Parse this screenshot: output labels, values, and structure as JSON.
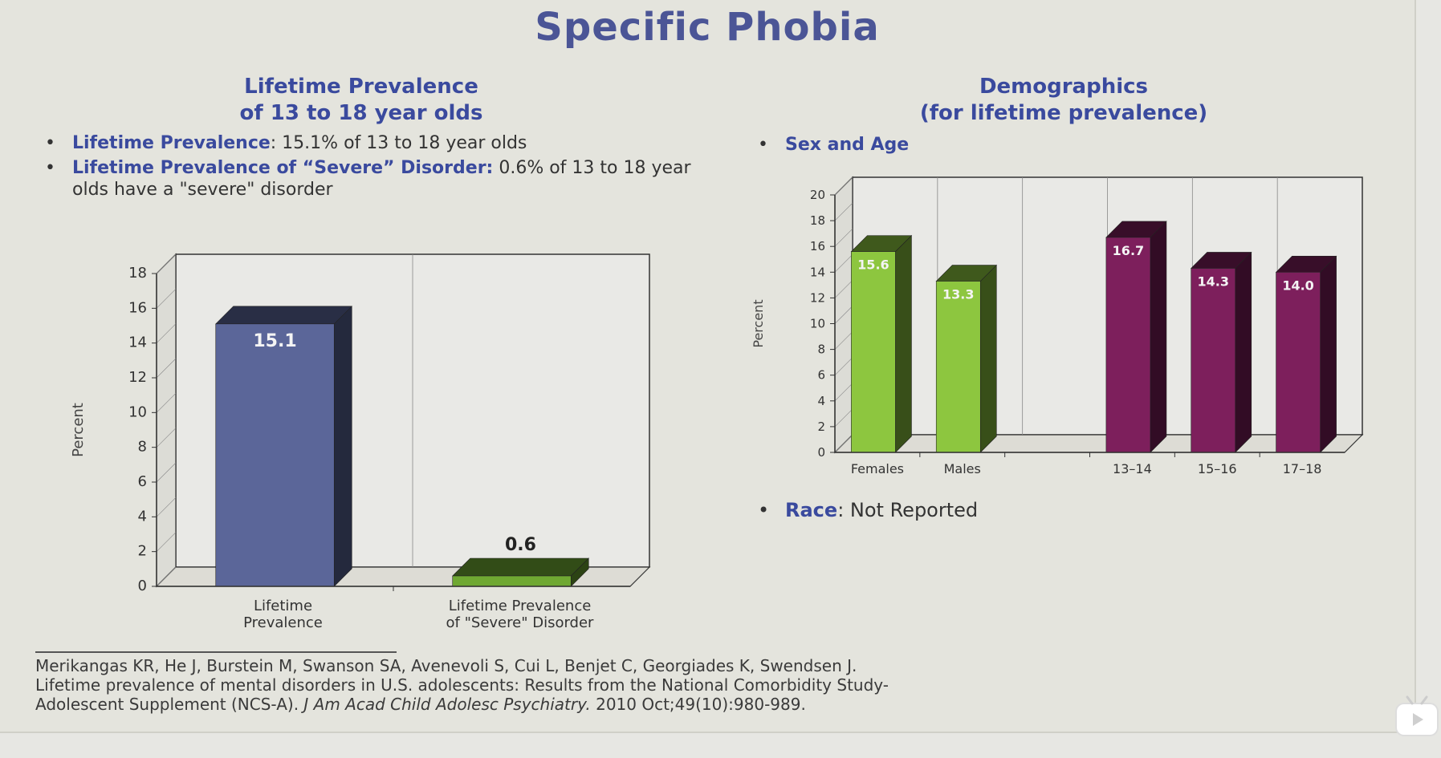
{
  "title": "Specific Phobia",
  "left": {
    "heading_line1": "Lifetime Prevalence",
    "heading_line2": "of 13 to 18 year olds",
    "bullets": [
      {
        "label": "Lifetime Prevalence",
        "text": ": 15.1% of 13 to 18 year olds"
      },
      {
        "label": "Lifetime Prevalence of “Severe” Disorder:",
        "text": " 0.6% of 13 to 18 year olds have a \"severe\" disorder"
      }
    ]
  },
  "right": {
    "heading_line1": "Demographics",
    "heading_line2": "(for lifetime prevalence)",
    "bullet_sex_age": "Sex and Age",
    "race_label": "Race",
    "race_text": ": Not Reported"
  },
  "citation": {
    "line1": "Merikangas KR, He J, Burstein M, Swanson SA, Avenevoli S, Cui L, Benjet C, Georgiades K, Swendsen J.",
    "line2": "Lifetime prevalence of mental disorders in U.S. adolescents: Results from the National Comorbidity Study-",
    "line3_prefix": "Adolescent Supplement (NCS-A). ",
    "journal": "J Am Acad Child Adolesc Psychiatry.",
    "line3_suffix": " 2010 Oct;49(10):980-989."
  },
  "chart_data": [
    {
      "type": "bar",
      "title": "",
      "xlabel": "",
      "ylabel": "Percent",
      "ylim": [
        0,
        18
      ],
      "yticks": [
        0,
        2,
        4,
        6,
        8,
        10,
        12,
        14,
        16,
        18
      ],
      "categories": [
        "Lifetime Prevalence",
        "Lifetime Prevalence of \"Severe\" Disorder"
      ],
      "category_lines": [
        [
          "Lifetime",
          "Prevalence"
        ],
        [
          "Lifetime Prevalence",
          "of \"Severe\" Disorder"
        ]
      ],
      "values": [
        15.1,
        0.6
      ],
      "labels": [
        "15.1",
        "0.6"
      ],
      "colors": [
        "#5b6699",
        "#6fa832"
      ],
      "grid": false,
      "style": "3d"
    },
    {
      "type": "bar",
      "title": "",
      "xlabel": "",
      "ylabel": "Percent",
      "ylim": [
        0,
        20
      ],
      "yticks": [
        0,
        2,
        4,
        6,
        8,
        10,
        12,
        14,
        16,
        18,
        20
      ],
      "categories": [
        "Females",
        "Males",
        "",
        "13–14",
        "15–16",
        "17–18"
      ],
      "values": [
        15.6,
        13.3,
        null,
        16.7,
        14.3,
        14.0
      ],
      "labels": [
        "15.6",
        "13.3",
        "",
        "16.7",
        "14.3",
        "14.0"
      ],
      "colors": [
        "#8dc63f",
        "#8dc63f",
        null,
        "#7d1f5c",
        "#7d1f5c",
        "#7d1f5c"
      ],
      "grid": false,
      "style": "3d"
    }
  ]
}
